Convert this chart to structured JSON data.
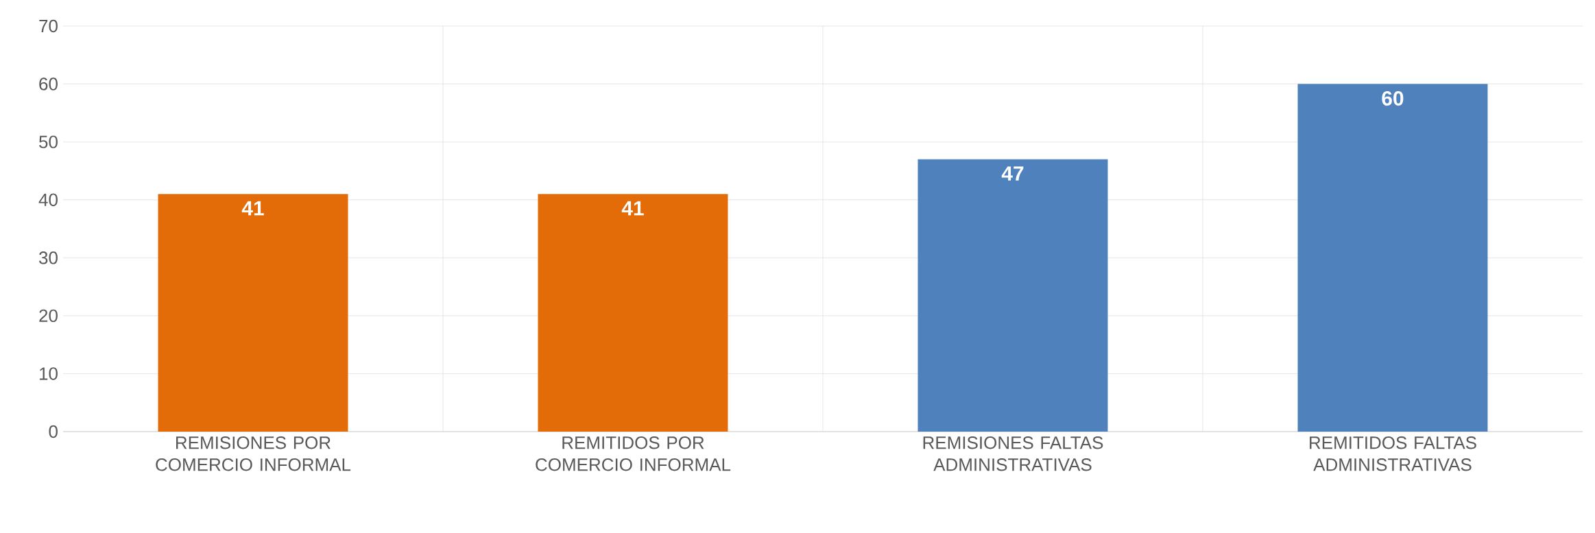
{
  "chart_data": {
    "type": "bar",
    "categories": [
      "REMISIONES POR COMERCIO INFORMAL",
      "REMITIDOS POR COMERCIO INFORMAL",
      "REMISIONES FALTAS ADMINISTRATIVAS",
      "REMITIDOS FALTAS ADMINISTRATIVAS"
    ],
    "values": [
      41,
      41,
      47,
      60
    ],
    "colors": [
      "#e36c09",
      "#e36c09",
      "#4f81bd",
      "#4f81bd"
    ],
    "ylim": [
      0,
      70
    ],
    "yticks": [
      0,
      10,
      20,
      30,
      40,
      50,
      60,
      70
    ],
    "grid": true,
    "data_labels": true
  }
}
